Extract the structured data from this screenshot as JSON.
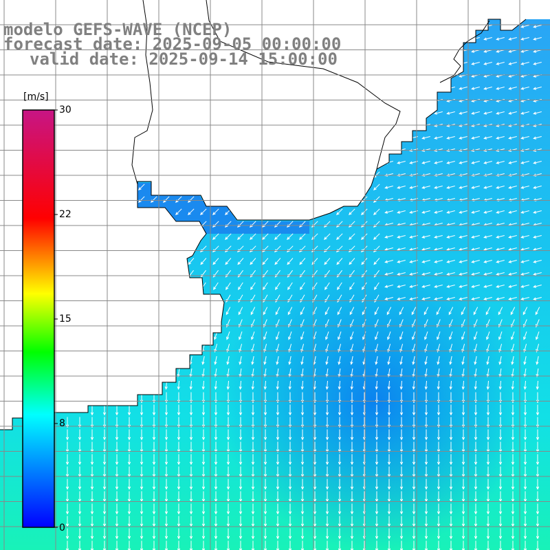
{
  "title": {
    "model": "modelo GEFS-WAVE (NCEP)",
    "forecast": "forecast date: 2025-09-05 00:00:00",
    "valid": "valid date: 2025-09-14 15:00:00"
  },
  "colorbar": {
    "unit": "[m/s]",
    "ticks": [
      "30",
      "22",
      "15",
      "8",
      "0"
    ],
    "values": [
      30,
      22,
      15,
      8,
      0
    ],
    "colors": [
      "#0000ff",
      "#00ffff",
      "#00ff00",
      "#ffff00",
      "#ff0000",
      "#c71585"
    ]
  },
  "map": {
    "variable": "wind speed and direction",
    "land_color": "#ffffff",
    "grid_color": "#888888"
  }
}
